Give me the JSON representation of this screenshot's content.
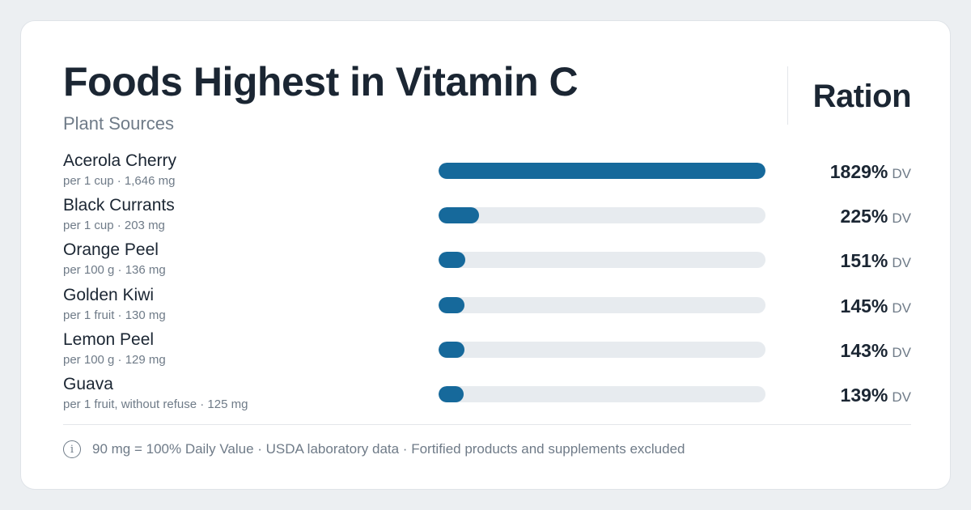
{
  "header": {
    "title": "Foods Highest in Vitamin C",
    "subtitle": "Plant Sources",
    "brand": "Ration"
  },
  "colors": {
    "bar": "#16699b",
    "track": "#e7ebef"
  },
  "icons": {
    "footer_icon": "info-icon",
    "footer_icon_glyph": "i"
  },
  "chart_data": {
    "type": "bar",
    "orientation": "horizontal",
    "unit": "DV",
    "xlim": [
      0,
      1829
    ],
    "categories": [
      "Acerola Cherry",
      "Black Currants",
      "Orange Peel",
      "Golden Kiwi",
      "Lemon Peel",
      "Guava"
    ],
    "serving_notes": [
      "per 1 cup · 1,646 mg",
      "per 1 cup · 203 mg",
      "per 100 g · 136 mg",
      "per 1 fruit · 130 mg",
      "per 100 g · 129 mg",
      "per 1 fruit, without refuse · 125 mg"
    ],
    "values": [
      1829,
      225,
      151,
      145,
      143,
      139
    ],
    "value_labels": [
      "1829%",
      "225%",
      "151%",
      "145%",
      "143%",
      "139%"
    ]
  },
  "footer": {
    "note": "90 mg = 100% Daily Value · USDA laboratory data · Fortified products and supplements excluded"
  }
}
